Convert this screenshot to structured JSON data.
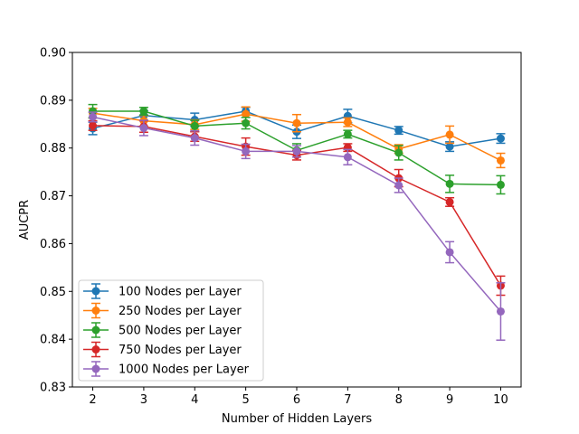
{
  "chart_data": {
    "type": "line",
    "xlabel": "Number of Hidden Layers",
    "ylabel": "AUCPR",
    "x": [
      2,
      3,
      4,
      5,
      6,
      7,
      8,
      9,
      10
    ],
    "xlim": [
      1.6,
      10.4
    ],
    "ylim": [
      0.83,
      0.9
    ],
    "xticks": [
      "2",
      "3",
      "4",
      "5",
      "6",
      "7",
      "8",
      "9",
      "10"
    ],
    "yticks": [
      "0.83",
      "0.84",
      "0.85",
      "0.86",
      "0.87",
      "0.88",
      "0.89",
      "0.90"
    ],
    "grid": false,
    "legend_position": "lower-left",
    "error_bars": true,
    "series": [
      {
        "name": "100 Nodes per Layer",
        "color": "#1f77b4",
        "values": [
          0.8841,
          0.8868,
          0.8859,
          0.8877,
          0.8834,
          0.8867,
          0.8837,
          0.8803,
          0.882
        ],
        "errors": [
          0.0013,
          0.001,
          0.0014,
          0.0008,
          0.0014,
          0.0014,
          0.0008,
          0.001,
          0.001
        ]
      },
      {
        "name": "250 Nodes per Layer",
        "color": "#ff7f0e",
        "values": [
          0.8873,
          0.8857,
          0.8849,
          0.8871,
          0.8852,
          0.8854,
          0.8798,
          0.8828,
          0.8774
        ],
        "errors": [
          0.001,
          0.0011,
          0.001,
          0.0015,
          0.0018,
          0.0009,
          0.0009,
          0.0018,
          0.0015
        ]
      },
      {
        "name": "500 Nodes per Layer",
        "color": "#2ca02c",
        "values": [
          0.8877,
          0.8877,
          0.8846,
          0.8852,
          0.8795,
          0.8829,
          0.879,
          0.8725,
          0.8723
        ],
        "errors": [
          0.0014,
          0.0008,
          0.0012,
          0.0012,
          0.0014,
          0.0008,
          0.0015,
          0.0018,
          0.0019
        ]
      },
      {
        "name": "750 Nodes per Layer",
        "color": "#d62728",
        "values": [
          0.8847,
          0.8845,
          0.8824,
          0.8803,
          0.8785,
          0.8801,
          0.8737,
          0.8687,
          0.8512
        ],
        "errors": [
          0.001,
          0.0012,
          0.001,
          0.0018,
          0.001,
          0.0008,
          0.0018,
          0.0009,
          0.002
        ]
      },
      {
        "name": "1000 Nodes per Layer",
        "color": "#9467bd",
        "values": [
          0.8865,
          0.8842,
          0.8821,
          0.8793,
          0.8793,
          0.8781,
          0.8722,
          0.8582,
          0.8458
        ],
        "errors": [
          0.001,
          0.0016,
          0.0015,
          0.0015,
          0.0012,
          0.0016,
          0.0015,
          0.0022,
          0.006
        ]
      }
    ]
  }
}
